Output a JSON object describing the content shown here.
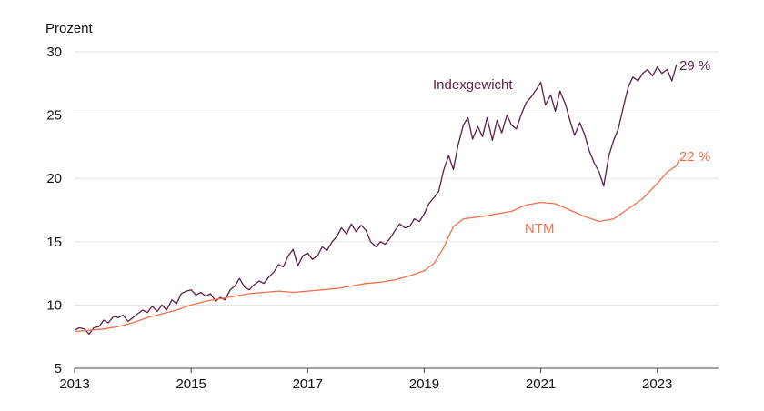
{
  "chart_data": {
    "type": "line",
    "ylabel": "Prozent",
    "ylim": [
      5,
      30
    ],
    "yticks": [
      5,
      10,
      15,
      20,
      25,
      30
    ],
    "xlim": [
      2013,
      2024.05
    ],
    "xticks": [
      "2013",
      "2015",
      "2017",
      "2019",
      "2021",
      "2023"
    ],
    "grid": true,
    "series": [
      {
        "name": "Indexgewicht",
        "end_label": "29 %",
        "color": "#5b1f45",
        "points": [
          [
            2013.0,
            8.0
          ],
          [
            2013.08,
            8.2
          ],
          [
            2013.17,
            8.1
          ],
          [
            2013.25,
            7.7
          ],
          [
            2013.33,
            8.2
          ],
          [
            2013.42,
            8.3
          ],
          [
            2013.5,
            8.8
          ],
          [
            2013.58,
            8.6
          ],
          [
            2013.67,
            9.1
          ],
          [
            2013.75,
            9.0
          ],
          [
            2013.83,
            9.2
          ],
          [
            2013.92,
            8.7
          ],
          [
            2014.0,
            9.0
          ],
          [
            2014.08,
            9.3
          ],
          [
            2014.17,
            9.6
          ],
          [
            2014.25,
            9.4
          ],
          [
            2014.33,
            9.9
          ],
          [
            2014.42,
            9.5
          ],
          [
            2014.5,
            10.0
          ],
          [
            2014.58,
            9.6
          ],
          [
            2014.67,
            10.4
          ],
          [
            2014.75,
            10.1
          ],
          [
            2014.83,
            10.9
          ],
          [
            2014.92,
            11.1
          ],
          [
            2015.0,
            11.2
          ],
          [
            2015.08,
            10.8
          ],
          [
            2015.17,
            11.0
          ],
          [
            2015.25,
            10.7
          ],
          [
            2015.33,
            10.9
          ],
          [
            2015.42,
            10.3
          ],
          [
            2015.5,
            10.6
          ],
          [
            2015.58,
            10.4
          ],
          [
            2015.67,
            11.2
          ],
          [
            2015.75,
            11.5
          ],
          [
            2015.83,
            12.1
          ],
          [
            2015.92,
            11.4
          ],
          [
            2016.0,
            11.2
          ],
          [
            2016.08,
            11.6
          ],
          [
            2016.17,
            11.9
          ],
          [
            2016.25,
            11.7
          ],
          [
            2016.33,
            12.2
          ],
          [
            2016.42,
            12.6
          ],
          [
            2016.5,
            13.2
          ],
          [
            2016.58,
            13.0
          ],
          [
            2016.67,
            13.9
          ],
          [
            2016.75,
            14.4
          ],
          [
            2016.83,
            13.1
          ],
          [
            2016.92,
            13.9
          ],
          [
            2017.0,
            14.1
          ],
          [
            2017.08,
            13.6
          ],
          [
            2017.17,
            13.9
          ],
          [
            2017.25,
            14.6
          ],
          [
            2017.33,
            14.3
          ],
          [
            2017.42,
            15.0
          ],
          [
            2017.5,
            15.4
          ],
          [
            2017.58,
            16.1
          ],
          [
            2017.67,
            15.6
          ],
          [
            2017.75,
            16.4
          ],
          [
            2017.83,
            15.8
          ],
          [
            2017.92,
            16.3
          ],
          [
            2018.0,
            15.9
          ],
          [
            2018.08,
            15.0
          ],
          [
            2018.17,
            14.6
          ],
          [
            2018.25,
            15.0
          ],
          [
            2018.33,
            14.8
          ],
          [
            2018.42,
            15.3
          ],
          [
            2018.5,
            15.9
          ],
          [
            2018.58,
            16.4
          ],
          [
            2018.67,
            16.1
          ],
          [
            2018.75,
            16.2
          ],
          [
            2018.83,
            16.8
          ],
          [
            2018.92,
            16.6
          ],
          [
            2019.0,
            17.2
          ],
          [
            2019.08,
            18.0
          ],
          [
            2019.17,
            18.5
          ],
          [
            2019.25,
            19.0
          ],
          [
            2019.33,
            20.6
          ],
          [
            2019.42,
            21.8
          ],
          [
            2019.5,
            20.7
          ],
          [
            2019.58,
            22.6
          ],
          [
            2019.67,
            24.2
          ],
          [
            2019.75,
            24.8
          ],
          [
            2019.83,
            23.1
          ],
          [
            2019.92,
            24.1
          ],
          [
            2020.0,
            23.3
          ],
          [
            2020.08,
            24.8
          ],
          [
            2020.17,
            23.0
          ],
          [
            2020.25,
            24.6
          ],
          [
            2020.33,
            23.6
          ],
          [
            2020.42,
            25.0
          ],
          [
            2020.5,
            24.2
          ],
          [
            2020.58,
            23.9
          ],
          [
            2020.67,
            25.1
          ],
          [
            2020.75,
            26.0
          ],
          [
            2020.83,
            26.4
          ],
          [
            2020.92,
            27.0
          ],
          [
            2021.0,
            27.6
          ],
          [
            2021.08,
            25.8
          ],
          [
            2021.17,
            26.6
          ],
          [
            2021.25,
            25.3
          ],
          [
            2021.33,
            26.9
          ],
          [
            2021.42,
            25.9
          ],
          [
            2021.5,
            24.6
          ],
          [
            2021.58,
            23.4
          ],
          [
            2021.67,
            24.4
          ],
          [
            2021.75,
            23.5
          ],
          [
            2021.83,
            22.2
          ],
          [
            2021.92,
            21.2
          ],
          [
            2022.0,
            20.5
          ],
          [
            2022.08,
            19.4
          ],
          [
            2022.17,
            21.8
          ],
          [
            2022.25,
            23.0
          ],
          [
            2022.33,
            23.9
          ],
          [
            2022.42,
            25.7
          ],
          [
            2022.5,
            27.2
          ],
          [
            2022.58,
            28.0
          ],
          [
            2022.67,
            27.7
          ],
          [
            2022.75,
            28.3
          ],
          [
            2022.83,
            28.6
          ],
          [
            2022.92,
            28.1
          ],
          [
            2023.0,
            28.8
          ],
          [
            2023.08,
            28.3
          ],
          [
            2023.17,
            28.6
          ],
          [
            2023.25,
            27.7
          ],
          [
            2023.33,
            29.0
          ]
        ]
      },
      {
        "name": "NTM",
        "end_label": "22 %",
        "color": "#f0724a",
        "points": [
          [
            2013.0,
            7.9
          ],
          [
            2013.25,
            8.0
          ],
          [
            2013.5,
            8.1
          ],
          [
            2013.75,
            8.3
          ],
          [
            2014.0,
            8.6
          ],
          [
            2014.25,
            9.0
          ],
          [
            2014.5,
            9.3
          ],
          [
            2014.75,
            9.6
          ],
          [
            2015.0,
            10.0
          ],
          [
            2015.25,
            10.3
          ],
          [
            2015.5,
            10.5
          ],
          [
            2015.75,
            10.7
          ],
          [
            2016.0,
            10.9
          ],
          [
            2016.25,
            11.0
          ],
          [
            2016.5,
            11.1
          ],
          [
            2016.75,
            11.0
          ],
          [
            2017.0,
            11.1
          ],
          [
            2017.25,
            11.2
          ],
          [
            2017.5,
            11.3
          ],
          [
            2017.75,
            11.5
          ],
          [
            2018.0,
            11.7
          ],
          [
            2018.25,
            11.8
          ],
          [
            2018.5,
            12.0
          ],
          [
            2018.75,
            12.3
          ],
          [
            2019.0,
            12.7
          ],
          [
            2019.17,
            13.3
          ],
          [
            2019.33,
            14.5
          ],
          [
            2019.5,
            16.2
          ],
          [
            2019.67,
            16.8
          ],
          [
            2019.83,
            16.9
          ],
          [
            2020.0,
            17.0
          ],
          [
            2020.25,
            17.2
          ],
          [
            2020.5,
            17.4
          ],
          [
            2020.75,
            17.9
          ],
          [
            2021.0,
            18.1
          ],
          [
            2021.25,
            18.0
          ],
          [
            2021.5,
            17.5
          ],
          [
            2021.75,
            17.0
          ],
          [
            2022.0,
            16.6
          ],
          [
            2022.25,
            16.8
          ],
          [
            2022.5,
            17.6
          ],
          [
            2022.75,
            18.4
          ],
          [
            2023.0,
            19.6
          ],
          [
            2023.17,
            20.5
          ],
          [
            2023.33,
            21.0
          ],
          [
            2023.38,
            21.6
          ]
        ]
      }
    ]
  }
}
